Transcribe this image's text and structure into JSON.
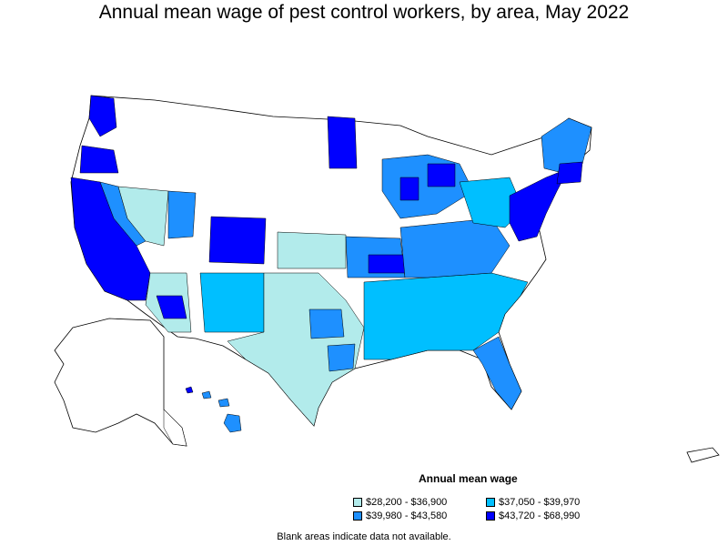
{
  "title": "Annual mean wage of pest control workers, by area, May 2022",
  "legend": {
    "title": "Annual mean wage",
    "items": [
      {
        "label": "$28,200 - $36,900",
        "color": "#b2ebeb"
      },
      {
        "label": "$37,050 - $39,970",
        "color": "#00bfff"
      },
      {
        "label": "$39,980 - $43,580",
        "color": "#1e90ff"
      },
      {
        "label": "$43,720 - $68,990",
        "color": "#0000ff"
      }
    ]
  },
  "note": "Blank areas indicate data not available.",
  "colors": {
    "no_data": "#ffffff",
    "border": "#000000"
  }
}
